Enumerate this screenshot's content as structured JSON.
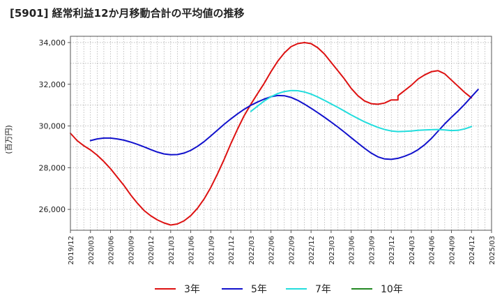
{
  "chart_data": {
    "type": "line",
    "title": "[5901]  経常利益12か月移動合計の平均値の推移",
    "ylabel": "(百万円)",
    "xlabel": "",
    "ylim": [
      25000,
      34300
    ],
    "y_ticks": [
      26000,
      28000,
      30000,
      32000,
      34000
    ],
    "y_tick_labels": [
      "26,000",
      "28,000",
      "30,000",
      "32,000",
      "34,000"
    ],
    "x_range": [
      "2019-12",
      "2025-03"
    ],
    "x_tick_labels": [
      "2019/12",
      "2020/03",
      "2020/06",
      "2020/09",
      "2020/12",
      "2021/03",
      "2021/06",
      "2021/09",
      "2021/12",
      "2022/03",
      "2022/06",
      "2022/09",
      "2022/12",
      "2023/03",
      "2023/06",
      "2023/09",
      "2023/12",
      "2024/03",
      "2024/06",
      "2024/09",
      "2024/12",
      "2025/03"
    ],
    "grid": true,
    "legend_position": "bottom",
    "series": [
      {
        "name": "3年",
        "color": "#dd1111",
        "points": [
          [
            "2019-12",
            29650
          ],
          [
            "2020-01",
            29300
          ],
          [
            "2020-02",
            29050
          ],
          [
            "2020-03",
            28850
          ],
          [
            "2020-04",
            28600
          ],
          [
            "2020-05",
            28300
          ],
          [
            "2020-06",
            27950
          ],
          [
            "2020-07",
            27550
          ],
          [
            "2020-08",
            27150
          ],
          [
            "2020-09",
            26700
          ],
          [
            "2020-10",
            26300
          ],
          [
            "2020-11",
            25950
          ],
          [
            "2020-12",
            25700
          ],
          [
            "2021-01",
            25500
          ],
          [
            "2021-02",
            25350
          ],
          [
            "2021-03",
            25250
          ],
          [
            "2021-04",
            25300
          ],
          [
            "2021-05",
            25450
          ],
          [
            "2021-06",
            25700
          ],
          [
            "2021-07",
            26050
          ],
          [
            "2021-08",
            26500
          ],
          [
            "2021-09",
            27050
          ],
          [
            "2021-10",
            27700
          ],
          [
            "2021-11",
            28400
          ],
          [
            "2021-12",
            29150
          ],
          [
            "2022-01",
            29850
          ],
          [
            "2022-02",
            30500
          ],
          [
            "2022-03",
            31050
          ],
          [
            "2022-04",
            31550
          ],
          [
            "2022-05",
            32050
          ],
          [
            "2022-06",
            32600
          ],
          [
            "2022-07",
            33100
          ],
          [
            "2022-08",
            33500
          ],
          [
            "2022-09",
            33800
          ],
          [
            "2022-10",
            33950
          ],
          [
            "2022-11",
            34000
          ],
          [
            "2022-12",
            33950
          ],
          [
            "2023-01",
            33750
          ],
          [
            "2023-02",
            33450
          ],
          [
            "2023-03",
            33050
          ],
          [
            "2023-04",
            32650
          ],
          [
            "2023-05",
            32250
          ],
          [
            "2023-06",
            31800
          ],
          [
            "2023-07",
            31450
          ],
          [
            "2023-08",
            31200
          ],
          [
            "2023-09",
            31070
          ],
          [
            "2023-10",
            31040
          ],
          [
            "2023-11",
            31100
          ],
          [
            "2023-12",
            31250
          ],
          [
            "2023-13",
            31250
          ],
          [
            "2024-01",
            31450
          ],
          [
            "2024-02",
            31700
          ],
          [
            "2024-03",
            31950
          ],
          [
            "2024-04",
            32250
          ],
          [
            "2024-05",
            32450
          ],
          [
            "2024-06",
            32600
          ],
          [
            "2024-07",
            32650
          ],
          [
            "2024-08",
            32500
          ],
          [
            "2024-09",
            32200
          ],
          [
            "2024-10",
            31900
          ],
          [
            "2024-11",
            31600
          ],
          [
            "2024-12",
            31350
          ]
        ]
      },
      {
        "name": "5年",
        "color": "#1111cc",
        "points": [
          [
            "2020-03",
            29300
          ],
          [
            "2020-04",
            29380
          ],
          [
            "2020-05",
            29420
          ],
          [
            "2020-06",
            29420
          ],
          [
            "2020-07",
            29380
          ],
          [
            "2020-08",
            29320
          ],
          [
            "2020-09",
            29230
          ],
          [
            "2020-10",
            29120
          ],
          [
            "2020-11",
            29000
          ],
          [
            "2020-12",
            28870
          ],
          [
            "2021-01",
            28750
          ],
          [
            "2021-02",
            28660
          ],
          [
            "2021-03",
            28620
          ],
          [
            "2021-04",
            28630
          ],
          [
            "2021-05",
            28700
          ],
          [
            "2021-06",
            28830
          ],
          [
            "2021-07",
            29020
          ],
          [
            "2021-08",
            29250
          ],
          [
            "2021-09",
            29520
          ],
          [
            "2021-10",
            29800
          ],
          [
            "2021-11",
            30080
          ],
          [
            "2021-12",
            30340
          ],
          [
            "2022-01",
            30580
          ],
          [
            "2022-02",
            30800
          ],
          [
            "2022-03",
            30990
          ],
          [
            "2022-04",
            31150
          ],
          [
            "2022-05",
            31290
          ],
          [
            "2022-06",
            31400
          ],
          [
            "2022-07",
            31460
          ],
          [
            "2022-08",
            31450
          ],
          [
            "2022-09",
            31370
          ],
          [
            "2022-10",
            31230
          ],
          [
            "2022-11",
            31050
          ],
          [
            "2022-12",
            30850
          ],
          [
            "2023-01",
            30640
          ],
          [
            "2023-02",
            30420
          ],
          [
            "2023-03",
            30190
          ],
          [
            "2023-04",
            29950
          ],
          [
            "2023-05",
            29700
          ],
          [
            "2023-06",
            29440
          ],
          [
            "2023-07",
            29180
          ],
          [
            "2023-08",
            28930
          ],
          [
            "2023-09",
            28700
          ],
          [
            "2023-10",
            28520
          ],
          [
            "2023-11",
            28420
          ],
          [
            "2023-12",
            28400
          ],
          [
            "2024-01",
            28450
          ],
          [
            "2024-02",
            28550
          ],
          [
            "2024-03",
            28680
          ],
          [
            "2024-04",
            28860
          ],
          [
            "2024-05",
            29100
          ],
          [
            "2024-06",
            29400
          ],
          [
            "2024-07",
            29750
          ],
          [
            "2024-08",
            30100
          ],
          [
            "2024-09",
            30420
          ],
          [
            "2024-10",
            30720
          ],
          [
            "2024-11",
            31050
          ],
          [
            "2024-12",
            31400
          ],
          [
            "2025-01",
            31750
          ]
        ]
      },
      {
        "name": "7年",
        "color": "#22dddd",
        "points": [
          [
            "2022-03",
            30700
          ],
          [
            "2022-04",
            30950
          ],
          [
            "2022-05",
            31200
          ],
          [
            "2022-06",
            31400
          ],
          [
            "2022-07",
            31550
          ],
          [
            "2022-08",
            31650
          ],
          [
            "2022-09",
            31700
          ],
          [
            "2022-10",
            31690
          ],
          [
            "2022-11",
            31630
          ],
          [
            "2022-12",
            31530
          ],
          [
            "2023-01",
            31390
          ],
          [
            "2023-02",
            31230
          ],
          [
            "2023-03",
            31060
          ],
          [
            "2023-04",
            30890
          ],
          [
            "2023-05",
            30710
          ],
          [
            "2023-06",
            30530
          ],
          [
            "2023-07",
            30360
          ],
          [
            "2023-08",
            30200
          ],
          [
            "2023-09",
            30060
          ],
          [
            "2023-10",
            29930
          ],
          [
            "2023-11",
            29830
          ],
          [
            "2023-12",
            29760
          ],
          [
            "2024-01",
            29730
          ],
          [
            "2024-02",
            29740
          ],
          [
            "2024-03",
            29760
          ],
          [
            "2024-04",
            29790
          ],
          [
            "2024-05",
            29810
          ],
          [
            "2024-06",
            29820
          ],
          [
            "2024-07",
            29830
          ],
          [
            "2024-08",
            29810
          ],
          [
            "2024-09",
            29780
          ],
          [
            "2024-10",
            29790
          ],
          [
            "2024-11",
            29860
          ],
          [
            "2024-12",
            29970
          ]
        ]
      },
      {
        "name": "10年",
        "color": "#228822",
        "points": []
      }
    ]
  }
}
